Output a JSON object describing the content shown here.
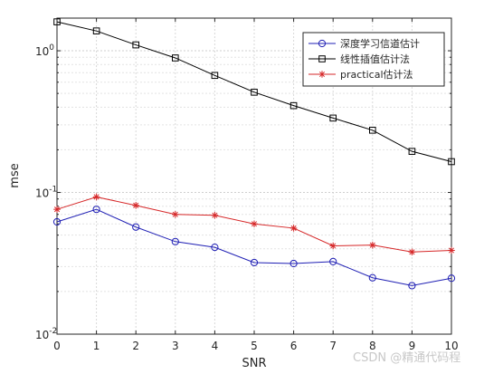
{
  "chart_data": {
    "type": "line",
    "xlabel": "SNR",
    "ylabel": "mse",
    "x": [
      0,
      1,
      2,
      3,
      4,
      5,
      6,
      7,
      8,
      9,
      10
    ],
    "xlim": [
      0,
      10
    ],
    "ylim": [
      0.01,
      1.7
    ],
    "yscale": "log",
    "xticks": [
      "0",
      "1",
      "2",
      "3",
      "4",
      "5",
      "6",
      "7",
      "8",
      "9",
      "10"
    ],
    "yticks": [
      {
        "value": 0.01,
        "base": "10",
        "exp": "-2"
      },
      {
        "value": 0.1,
        "base": "10",
        "exp": "-1"
      },
      {
        "value": 1,
        "base": "10",
        "exp": "0"
      }
    ],
    "grid": true,
    "legend_position": "top-right",
    "series": [
      {
        "name": "深度学习信道估计",
        "color": "#1f1fb4",
        "marker": "circle",
        "values": [
          0.062,
          0.076,
          0.057,
          0.045,
          0.041,
          0.032,
          0.0315,
          0.0325,
          0.025,
          0.022,
          0.0248
        ]
      },
      {
        "name": "线性插值估计法",
        "color": "#000000",
        "marker": "square",
        "values": [
          1.6,
          1.38,
          1.1,
          0.89,
          0.67,
          0.51,
          0.41,
          0.335,
          0.275,
          0.195,
          0.165
        ]
      },
      {
        "name": "practical估计法",
        "color": "#d62728",
        "marker": "asterisk",
        "values": [
          0.076,
          0.093,
          0.081,
          0.07,
          0.069,
          0.06,
          0.056,
          0.042,
          0.0425,
          0.038,
          0.039
        ]
      }
    ]
  },
  "watermark": {
    "text": "CSDN @精通代码程"
  }
}
